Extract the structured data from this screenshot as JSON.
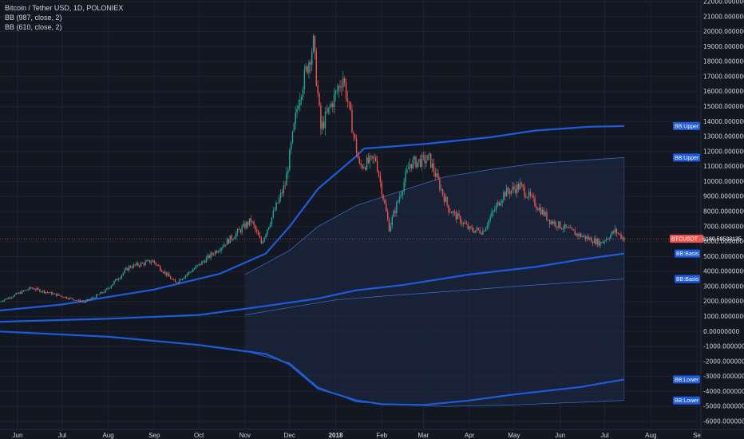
{
  "legend": {
    "title": "Bitcoin / Tether USD, 1D, POLONIEX",
    "study1": "BB (987, close, 2)",
    "study2": "BB (610, close, 2)"
  },
  "colors": {
    "background": "#131722",
    "grid": "#1e2230",
    "up": "#26a69a",
    "down": "#ef5350",
    "bb987": "#1e5bdb",
    "bb610": "#3a6fd8",
    "fill": "#1d2a45",
    "price_line": "#ef5350",
    "badge_blue": "#1e5bdb",
    "badge_red": "#ef5350"
  },
  "badges": {
    "price": "BTCUSDT · 6180.58533135",
    "bb987_upper": "BB:Upper",
    "bb610_upper": "BB:Upper",
    "bb987_basis": "BB:Basis",
    "bb610_basis": "BB:Basis",
    "bb987_lower": "BB:Lower",
    "bb610_lower": "BB:Lower"
  },
  "chart_data": {
    "type": "candlestick",
    "title": "Bitcoin / Tether USD, 1D, POLONIEX",
    "ylim": [
      -6000,
      22000
    ],
    "y_ticks": [
      "22000.00000000",
      "21000.00000000",
      "20000.00000000",
      "19000.00000000",
      "18000.00000000",
      "17000.00000000",
      "16000.00000000",
      "15000.00000000",
      "14000.00000000",
      "13000.00000000",
      "12000.00000000",
      "11000.00000000",
      "10000.00000000",
      "9000.00000000",
      "8000.00000000",
      "7000.00000000",
      "6000.00000000",
      "5000.00000000",
      "4000.00000000",
      "3000.00000000",
      "2000.00000000",
      "1000.00000000",
      "0.00000000",
      "-1000.00000000",
      "-2000.00000000",
      "-3000.00000000",
      "-4000.00000000",
      "-5000.00000000",
      "-6000.00000000"
    ],
    "y_tick_values": [
      22000,
      21000,
      20000,
      19000,
      18000,
      17000,
      16000,
      15000,
      14000,
      13000,
      12000,
      11000,
      10000,
      9000,
      8000,
      7000,
      6000,
      5000,
      4000,
      3000,
      2000,
      1000,
      0,
      -1000,
      -2000,
      -3000,
      -4000,
      -5000,
      -6000
    ],
    "x_ticks": [
      "Jun",
      "Jul",
      "Aug",
      "Sep",
      "Oct",
      "Nov",
      "Dec",
      "2018",
      "Feb",
      "Mar",
      "Apr",
      "May",
      "Jun",
      "Jul",
      "Aug",
      "Se"
    ],
    "x_tick_dates": [
      "2017-06-01",
      "2017-07-01",
      "2017-08-01",
      "2017-09-01",
      "2017-10-01",
      "2017-11-01",
      "2017-12-01",
      "2018-01-01",
      "2018-02-01",
      "2018-03-01",
      "2018-04-01",
      "2018-05-01",
      "2018-06-01",
      "2018-07-01",
      "2018-08-01",
      "2018-09-01"
    ],
    "last_price": 6180.58533135,
    "price_anchors": [
      {
        "date": "2017-05-20",
        "close": 2000
      },
      {
        "date": "2017-06-10",
        "close": 2900
      },
      {
        "date": "2017-06-25",
        "close": 2500
      },
      {
        "date": "2017-07-16",
        "close": 1950
      },
      {
        "date": "2017-07-30",
        "close": 2700
      },
      {
        "date": "2017-08-15",
        "close": 4300
      },
      {
        "date": "2017-08-31",
        "close": 4700
      },
      {
        "date": "2017-09-15",
        "close": 3250
      },
      {
        "date": "2017-09-30",
        "close": 4350
      },
      {
        "date": "2017-10-20",
        "close": 6000
      },
      {
        "date": "2017-11-05",
        "close": 7400
      },
      {
        "date": "2017-11-12",
        "close": 5900
      },
      {
        "date": "2017-11-28",
        "close": 9800
      },
      {
        "date": "2017-12-07",
        "close": 15500
      },
      {
        "date": "2017-12-17",
        "close": 19200
      },
      {
        "date": "2017-12-22",
        "close": 13500
      },
      {
        "date": "2018-01-06",
        "close": 17000
      },
      {
        "date": "2018-01-17",
        "close": 11000
      },
      {
        "date": "2018-01-28",
        "close": 11500
      },
      {
        "date": "2018-02-06",
        "close": 6900
      },
      {
        "date": "2018-02-20",
        "close": 11200
      },
      {
        "date": "2018-03-05",
        "close": 11500
      },
      {
        "date": "2018-03-18",
        "close": 8200
      },
      {
        "date": "2018-04-01",
        "close": 6800
      },
      {
        "date": "2018-04-10",
        "close": 6700
      },
      {
        "date": "2018-04-24",
        "close": 9200
      },
      {
        "date": "2018-05-05",
        "close": 9700
      },
      {
        "date": "2018-05-25",
        "close": 7400
      },
      {
        "date": "2018-06-12",
        "close": 6500
      },
      {
        "date": "2018-06-28",
        "close": 5900
      },
      {
        "date": "2018-07-08",
        "close": 6700
      },
      {
        "date": "2018-07-14",
        "close": 6180
      }
    ],
    "series": [
      {
        "name": "BB (987, close, 2)",
        "band": "upper",
        "points": [
          {
            "date": "2018-01-20",
            "value": 12200
          },
          {
            "date": "2018-03-01",
            "value": 12500
          },
          {
            "date": "2018-04-15",
            "value": 12950
          },
          {
            "date": "2018-05-15",
            "value": 13400
          },
          {
            "date": "2018-06-20",
            "value": 13650
          },
          {
            "date": "2018-07-14",
            "value": 13700
          }
        ]
      },
      {
        "name": "BB (987, close, 2)",
        "band": "basis",
        "points": [
          {
            "date": "2017-05-20",
            "value": 1400
          },
          {
            "date": "2017-07-01",
            "value": 1800
          },
          {
            "date": "2017-09-01",
            "value": 2800
          },
          {
            "date": "2017-10-15",
            "value": 3850
          },
          {
            "date": "2017-11-15",
            "value": 5200
          },
          {
            "date": "2017-12-01",
            "value": 7000
          },
          {
            "date": "2017-12-20",
            "value": 9500
          },
          {
            "date": "2018-01-15",
            "value": 11700
          },
          {
            "date": "2018-01-20",
            "value": 12200
          }
        ]
      },
      {
        "name": "BB (987, close, 2)",
        "band": "basis_lower_part",
        "points": [
          {
            "date": "2017-05-20",
            "value": 650
          },
          {
            "date": "2017-08-01",
            "value": 850
          },
          {
            "date": "2017-10-01",
            "value": 1100
          },
          {
            "date": "2017-11-15",
            "value": 1700
          },
          {
            "date": "2017-12-20",
            "value": 2200
          },
          {
            "date": "2018-01-15",
            "value": 2750
          },
          {
            "date": "2018-02-15",
            "value": 3100
          },
          {
            "date": "2018-04-01",
            "value": 3800
          },
          {
            "date": "2018-05-15",
            "value": 4300
          },
          {
            "date": "2018-06-15",
            "value": 4800
          },
          {
            "date": "2018-07-14",
            "value": 5200
          }
        ]
      },
      {
        "name": "BB (987, close, 2)",
        "band": "lower",
        "points": [
          {
            "date": "2017-05-20",
            "value": 0
          },
          {
            "date": "2017-08-01",
            "value": -350
          },
          {
            "date": "2017-10-01",
            "value": -900
          },
          {
            "date": "2017-11-15",
            "value": -1500
          },
          {
            "date": "2017-12-01",
            "value": -2200
          },
          {
            "date": "2017-12-20",
            "value": -3800
          },
          {
            "date": "2018-01-15",
            "value": -4600
          },
          {
            "date": "2018-02-01",
            "value": -4850
          },
          {
            "date": "2018-03-01",
            "value": -4900
          },
          {
            "date": "2018-04-01",
            "value": -4600
          },
          {
            "date": "2018-05-01",
            "value": -4200
          },
          {
            "date": "2018-06-15",
            "value": -3700
          },
          {
            "date": "2018-07-14",
            "value": -3200
          }
        ]
      },
      {
        "name": "BB (610, close, 2)",
        "band": "upper",
        "points": [
          {
            "date": "2017-11-01",
            "value": 3800
          },
          {
            "date": "2017-12-01",
            "value": 5400
          },
          {
            "date": "2017-12-20",
            "value": 7000
          },
          {
            "date": "2018-01-15",
            "value": 8400
          },
          {
            "date": "2018-02-15",
            "value": 9400
          },
          {
            "date": "2018-03-15",
            "value": 10300
          },
          {
            "date": "2018-04-15",
            "value": 10800
          },
          {
            "date": "2018-05-15",
            "value": 11200
          },
          {
            "date": "2018-07-14",
            "value": 11600
          }
        ]
      },
      {
        "name": "BB (610, close, 2)",
        "band": "basis",
        "points": [
          {
            "date": "2017-11-01",
            "value": 1100
          },
          {
            "date": "2017-12-01",
            "value": 1600
          },
          {
            "date": "2018-01-01",
            "value": 2100
          },
          {
            "date": "2018-02-01",
            "value": 2350
          },
          {
            "date": "2018-03-15",
            "value": 2650
          },
          {
            "date": "2018-05-01",
            "value": 3000
          },
          {
            "date": "2018-07-14",
            "value": 3500
          }
        ]
      },
      {
        "name": "BB (610, close, 2)",
        "band": "lower",
        "points": [
          {
            "date": "2017-11-01",
            "value": -1300
          },
          {
            "date": "2017-12-01",
            "value": -2100
          },
          {
            "date": "2017-12-20",
            "value": -3700
          },
          {
            "date": "2018-01-15",
            "value": -4700
          },
          {
            "date": "2018-02-15",
            "value": -4900
          },
          {
            "date": "2018-03-15",
            "value": -5000
          },
          {
            "date": "2018-05-01",
            "value": -4900
          },
          {
            "date": "2018-07-14",
            "value": -4600
          }
        ]
      }
    ],
    "grid": true
  }
}
